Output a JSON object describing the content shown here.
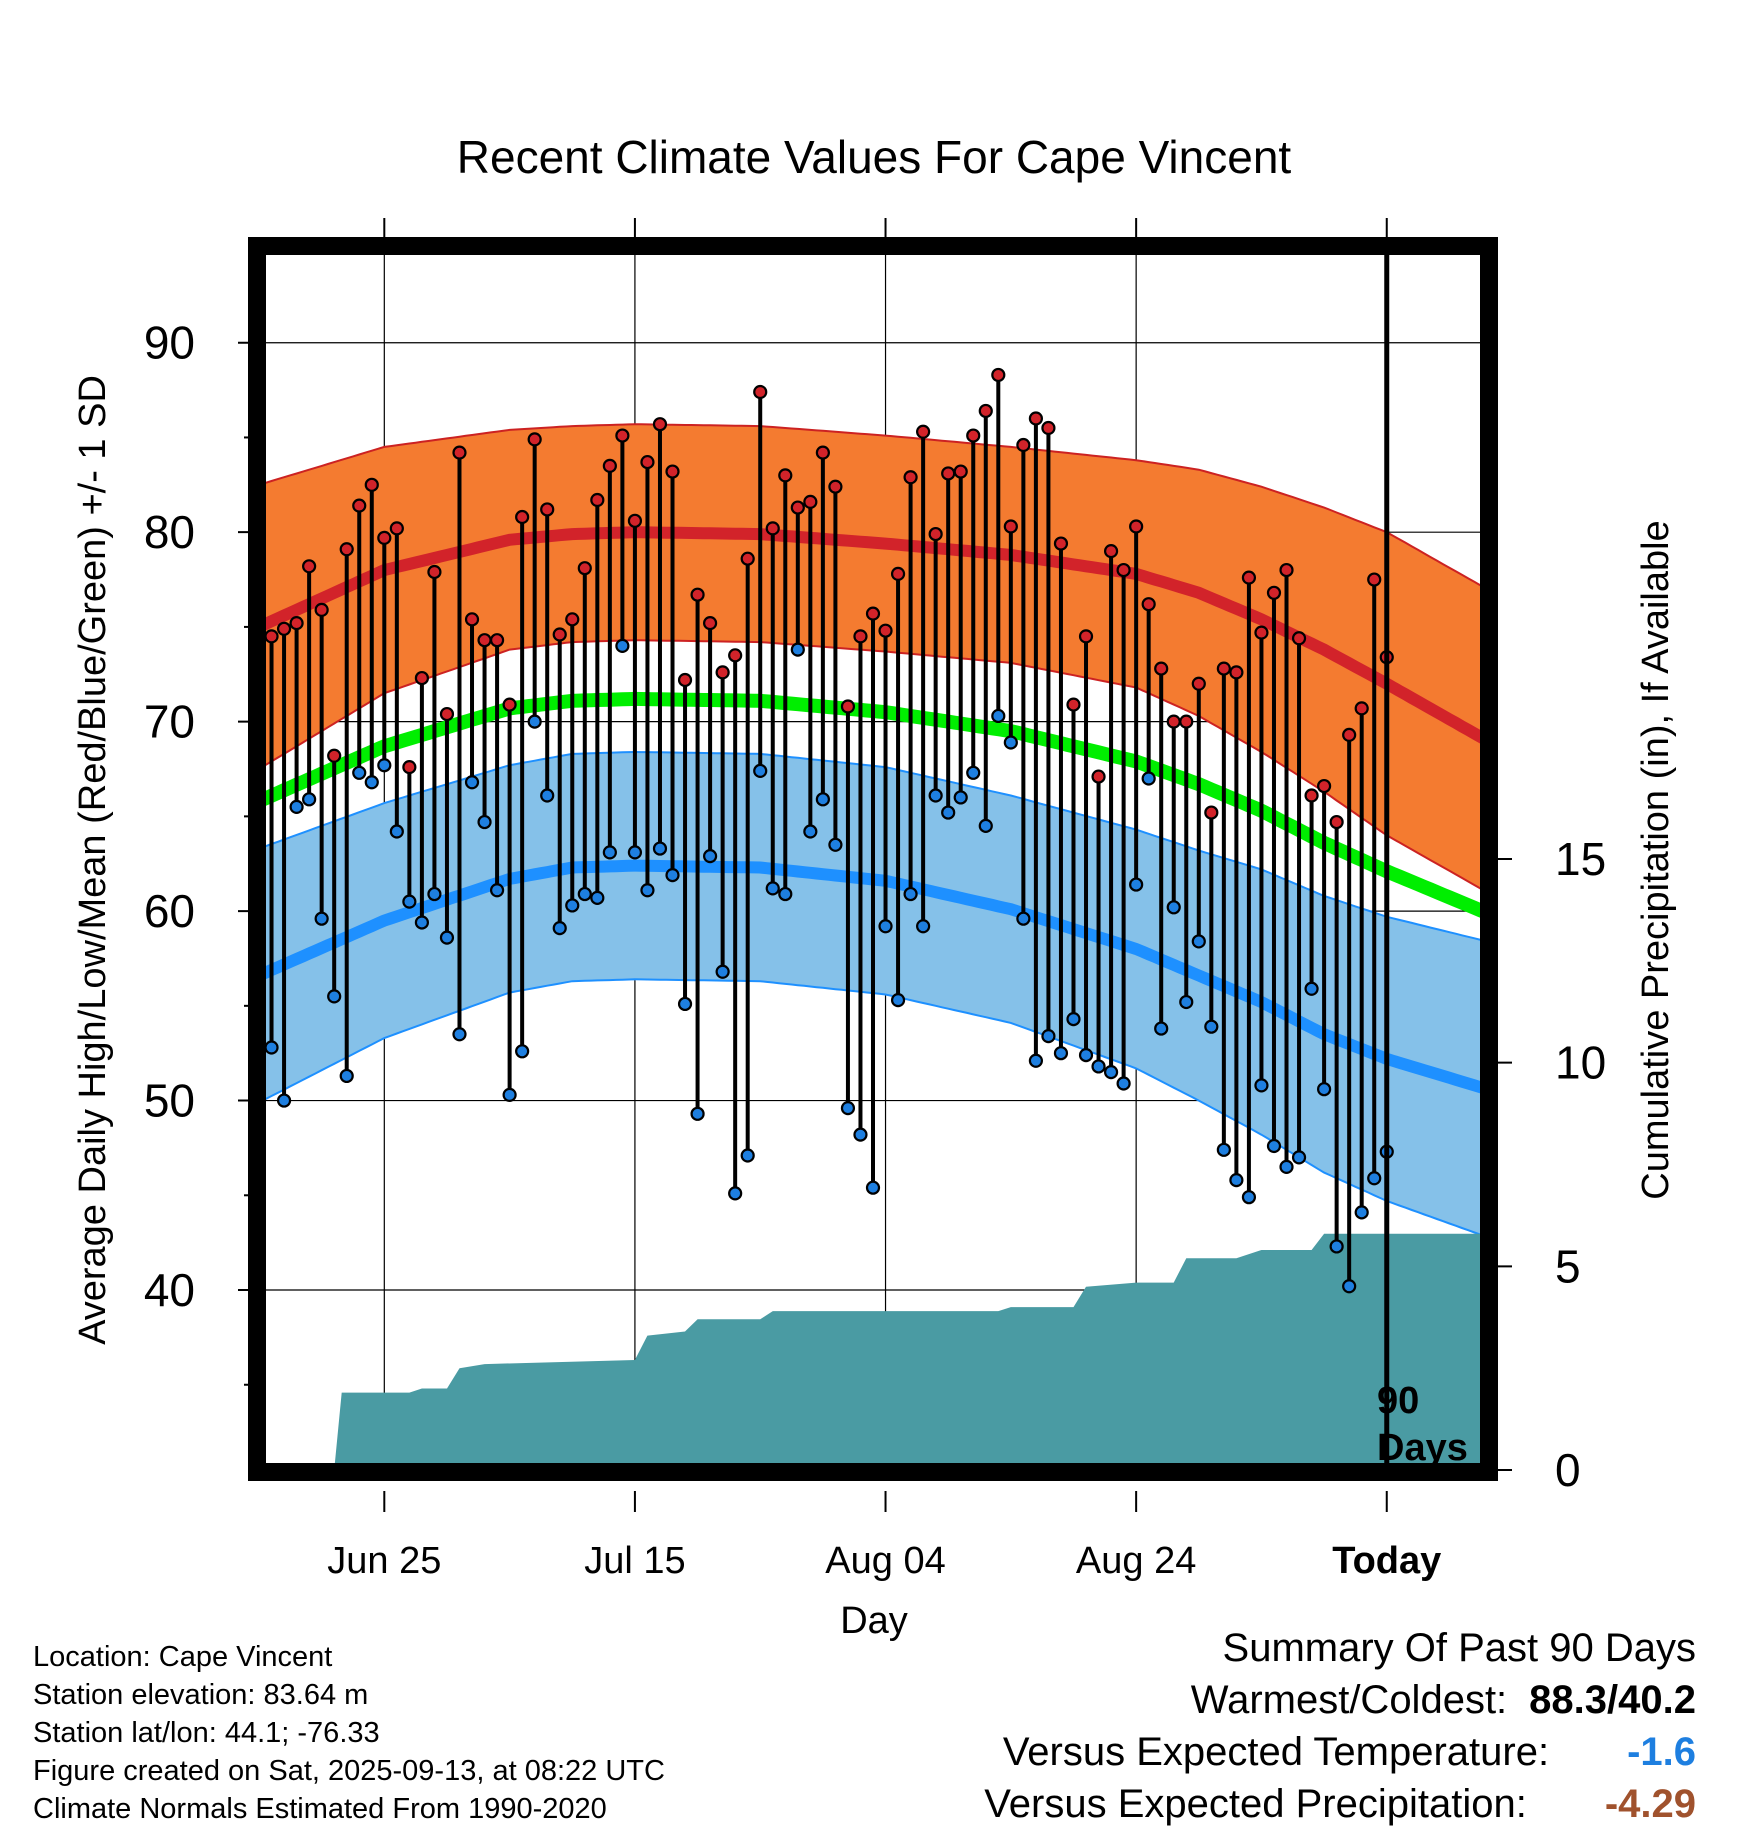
{
  "chart_data": {
    "type": "line",
    "title": "Recent Climate Values For Cape Vincent",
    "xlabel": "Day",
    "ylabel": "Average Daily High/Low/Mean (Red/Blue/Green) +/- 1 SD",
    "y2label": "Cumulative Precipitation (in), If Available",
    "x_range_days": [
      1,
      99
    ],
    "ylim": [
      30.5,
      95
    ],
    "y2lim": [
      0,
      30
    ],
    "y_ticks": [
      40,
      50,
      60,
      70,
      80,
      90
    ],
    "y2_ticks": [
      0,
      5,
      10,
      15
    ],
    "x_ticks": [
      {
        "day": 11,
        "label": "Jun 25"
      },
      {
        "day": 31,
        "label": "Jul 15"
      },
      {
        "day": 51,
        "label": "Aug 04"
      },
      {
        "day": 71,
        "label": "Aug 24"
      },
      {
        "day": 91,
        "label": "Today"
      }
    ],
    "window_marker": {
      "day": 91,
      "label_line1": "90",
      "label_line2": "Days"
    },
    "colors": {
      "high_band": "#f47b30",
      "high_mean": "#d2232a",
      "low_band": "#85c1e9",
      "low_mean": "#1e90ff",
      "mean": "#00ee00",
      "precip": "#4a9ba3",
      "high_dot": "#d2232a",
      "low_dot": "#1e7fe0"
    },
    "normals": {
      "days": [
        1,
        11,
        21,
        26,
        31,
        41,
        51,
        61,
        71,
        76,
        81,
        86,
        91,
        99
      ],
      "high_mean": [
        75.0,
        78.0,
        79.6,
        79.9,
        80.0,
        79.9,
        79.4,
        78.8,
        77.8,
        76.8,
        75.4,
        73.8,
        72.0,
        69.0
      ],
      "high_sd": [
        7.5,
        6.5,
        5.8,
        5.7,
        5.7,
        5.7,
        5.7,
        5.7,
        6.0,
        6.5,
        7.0,
        7.5,
        8.0,
        8.0
      ],
      "low_mean": [
        56.6,
        59.5,
        61.7,
        62.3,
        62.4,
        62.3,
        61.6,
        60.1,
        58.0,
        56.6,
        55.2,
        53.5,
        52.2,
        50.6
      ],
      "low_sd": [
        6.7,
        6.2,
        6.0,
        6.0,
        6.0,
        6.0,
        6.0,
        6.0,
        6.3,
        6.6,
        7.0,
        7.3,
        7.5,
        7.8
      ],
      "mean": [
        65.8,
        68.7,
        70.7,
        71.1,
        71.2,
        71.1,
        70.5,
        69.5,
        67.9,
        66.7,
        65.3,
        63.6,
        62.1,
        59.9
      ]
    },
    "highs": [
      74.5,
      74.9,
      75.2,
      78.2,
      75.9,
      68.2,
      79.1,
      81.4,
      82.5,
      79.7,
      80.2,
      67.6,
      72.3,
      77.9,
      70.4,
      84.2,
      75.4,
      74.3,
      74.3,
      70.9,
      80.8,
      84.9,
      81.2,
      74.6,
      75.4,
      78.1,
      81.7,
      83.5,
      85.1,
      80.6,
      83.7,
      85.7,
      83.2,
      72.2,
      76.7,
      75.2,
      72.6,
      73.5,
      78.6,
      87.4,
      80.2,
      83.0,
      81.3,
      81.6,
      84.2,
      82.4,
      70.8,
      74.5,
      75.7,
      74.8,
      77.8,
      82.9,
      85.3,
      79.9,
      83.1,
      83.2,
      85.1,
      86.4,
      88.3,
      80.3,
      84.6,
      86.0,
      85.5,
      79.4,
      70.9,
      74.5,
      67.1,
      79.0,
      78.0,
      80.3,
      76.2,
      72.8,
      70.0,
      70.0,
      72.0,
      65.2,
      72.8,
      72.6,
      77.6,
      74.7,
      76.8,
      78.0,
      74.4,
      66.1,
      66.6,
      64.7,
      69.3,
      70.7,
      77.5,
      73.4
    ],
    "lows": [
      52.8,
      50.0,
      65.5,
      65.9,
      59.6,
      55.5,
      51.3,
      67.3,
      66.8,
      67.7,
      64.2,
      60.5,
      59.4,
      60.9,
      58.6,
      53.5,
      66.8,
      64.7,
      61.1,
      50.3,
      52.6,
      70.0,
      66.1,
      59.1,
      60.3,
      60.9,
      60.7,
      63.1,
      74.0,
      63.1,
      61.1,
      63.3,
      61.9,
      55.1,
      49.3,
      62.9,
      56.8,
      45.1,
      47.1,
      67.4,
      61.2,
      60.9,
      73.8,
      64.2,
      65.9,
      63.5,
      49.6,
      48.2,
      45.4,
      59.2,
      55.3,
      60.9,
      59.2,
      66.1,
      65.2,
      66.0,
      67.3,
      64.5,
      70.3,
      68.9,
      59.6,
      52.1,
      53.4,
      52.5,
      54.3,
      52.4,
      51.8,
      51.5,
      50.9,
      61.4,
      67.0,
      53.8,
      60.2,
      55.2,
      58.4,
      53.9,
      47.4,
      45.8,
      44.9,
      50.8,
      47.6,
      46.5,
      47.0,
      55.9,
      50.6,
      42.3,
      40.2,
      44.1,
      45.9,
      47.3
    ],
    "precip_cumulative": [
      [
        1,
        0
      ],
      [
        7,
        0
      ],
      [
        7.6,
        1.9
      ],
      [
        13,
        1.9
      ],
      [
        14,
        2.0
      ],
      [
        16,
        2.0
      ],
      [
        17,
        2.5
      ],
      [
        19,
        2.6
      ],
      [
        31,
        2.7
      ],
      [
        32,
        3.3
      ],
      [
        35,
        3.4
      ],
      [
        36,
        3.7
      ],
      [
        41,
        3.7
      ],
      [
        42,
        3.9
      ],
      [
        60,
        3.9
      ],
      [
        61,
        4.0
      ],
      [
        66,
        4.0
      ],
      [
        67,
        4.5
      ],
      [
        71,
        4.6
      ],
      [
        74,
        4.6
      ],
      [
        75,
        5.2
      ],
      [
        79,
        5.2
      ],
      [
        81,
        5.4
      ],
      [
        85,
        5.4
      ],
      [
        86,
        5.8
      ],
      [
        99,
        5.8
      ]
    ]
  },
  "info": {
    "location": "Location: Cape Vincent",
    "elevation": "Station elevation: 83.64 m",
    "latlon": "Station lat/lon: 44.1; -76.33",
    "created": "Figure created on Sat, 2025-09-13, at 08:22 UTC",
    "normals_period": "Climate Normals Estimated From 1990-2020"
  },
  "summary": {
    "title": "Summary Of Past 90 Days",
    "warm_cold_label": "Warmest/Coldest:",
    "warm_cold_value": "88.3/40.2",
    "temp_label": "Versus Expected Temperature:",
    "temp_value": "-1.6",
    "temp_color": "#1e7fe0",
    "precip_label": "Versus Expected Precipitation:",
    "precip_value": "-4.29",
    "precip_color": "#a0522d"
  }
}
